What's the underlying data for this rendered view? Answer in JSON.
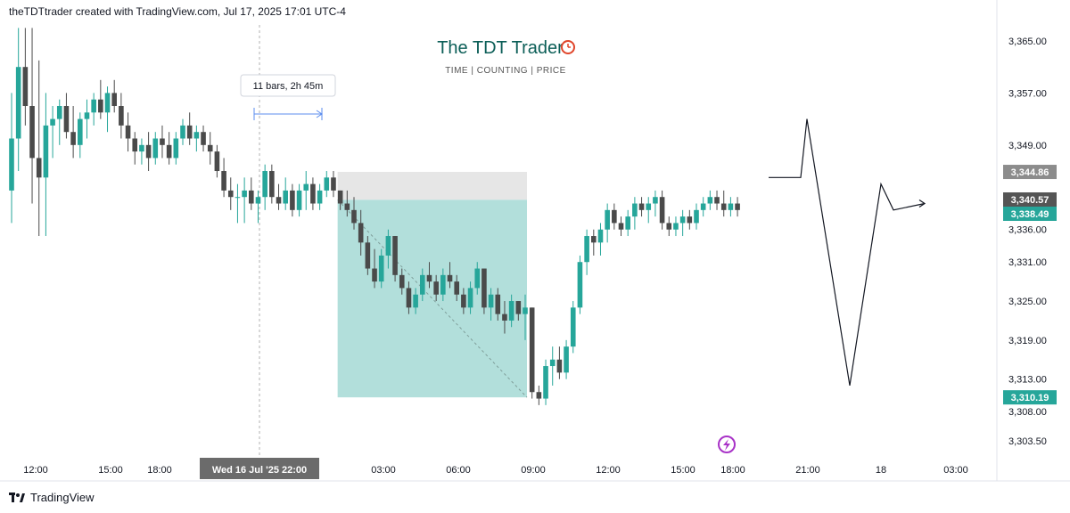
{
  "header": {
    "text": "theTDTtrader created with TradingView.com, Jul 17, 2025 17:01 UTC-4"
  },
  "watermark": {
    "title": "The TDT Trader",
    "subtitle": "TIME  |  COUNTING  |  PRICE",
    "icon": "alarm-clock-icon"
  },
  "footer": {
    "brand": "TradingView",
    "icon": "tradingview-logo-icon"
  },
  "measure_tooltip": {
    "text": "11 bars, 2h 45m"
  },
  "colors": {
    "up": "#26a69a",
    "down": "#4a4a4a",
    "box_fill": "#b2dfdb",
    "box_top": "#e6e6e6",
    "price_gray": "#8c8c8c",
    "price_dark": "#555555",
    "price_green": "#26a69a",
    "arrow_blue": "#5b8def"
  },
  "chart_data": {
    "type": "candlestick",
    "price_axis": {
      "ticks": [
        "3,365.00",
        "3,357.00",
        "3,349.00",
        "3,336.00",
        "3,331.00",
        "3,325.00",
        "3,319.00",
        "3,313.00",
        "3,308.00",
        "3,303.50"
      ],
      "ylim": [
        3301,
        3368
      ]
    },
    "time_axis": {
      "labels": [
        "12:00",
        "15:00",
        "18:00",
        "Wed 16 Jul '25",
        "22:00",
        "03:00",
        "06:00",
        "09:00",
        "12:00",
        "15:00",
        "18:00",
        "21:00",
        "18",
        "03:00"
      ],
      "highlighted": "Wed 16 Jul '25   22:00"
    },
    "price_labels": [
      {
        "text": "3,344.86",
        "value": 3344.86,
        "style": "gray"
      },
      {
        "text": "3,340.57",
        "value": 3340.57,
        "style": "dark"
      },
      {
        "text": "3,338.49",
        "value": 3338.49,
        "style": "green"
      },
      {
        "text": "3,310.19",
        "value": 3310.19,
        "style": "green"
      }
    ],
    "candles": [
      [
        3342,
        3357,
        3337,
        3350
      ],
      [
        3350,
        3367,
        3345,
        3361
      ],
      [
        3361,
        3367,
        3352,
        3355
      ],
      [
        3355,
        3367,
        3340,
        3347
      ],
      [
        3347,
        3362,
        3335,
        3344
      ],
      [
        3344,
        3357,
        3335,
        3352
      ],
      [
        3352,
        3355,
        3347,
        3353
      ],
      [
        3353,
        3356,
        3349,
        3355
      ],
      [
        3355,
        3357,
        3350,
        3351
      ],
      [
        3351,
        3355,
        3347,
        3349
      ],
      [
        3349,
        3354,
        3347,
        3353
      ],
      [
        3353,
        3356,
        3350,
        3354
      ],
      [
        3354,
        3357,
        3352,
        3356
      ],
      [
        3356,
        3359,
        3353,
        3354
      ],
      [
        3354,
        3358,
        3351,
        3357
      ],
      [
        3357,
        3359,
        3354,
        3355
      ],
      [
        3355,
        3357,
        3350,
        3352
      ],
      [
        3352,
        3354,
        3348,
        3350
      ],
      [
        3350,
        3351,
        3346,
        3348
      ],
      [
        3348,
        3350,
        3346,
        3349
      ],
      [
        3349,
        3351,
        3345,
        3347
      ],
      [
        3347,
        3351,
        3346,
        3350
      ],
      [
        3350,
        3352,
        3347,
        3349
      ],
      [
        3349,
        3351,
        3346,
        3347
      ],
      [
        3347,
        3351,
        3346,
        3350
      ],
      [
        3350,
        3353,
        3349,
        3352
      ],
      [
        3352,
        3354,
        3349,
        3350
      ],
      [
        3350,
        3352,
        3348,
        3351
      ],
      [
        3351,
        3352,
        3348,
        3349
      ],
      [
        3349,
        3351,
        3346,
        3348
      ],
      [
        3348,
        3349,
        3344,
        3345
      ],
      [
        3345,
        3347,
        3341,
        3342
      ],
      [
        3342,
        3344,
        3339,
        3341
      ],
      [
        3341,
        3343,
        3337,
        3341
      ],
      [
        3341,
        3344,
        3337,
        3342
      ],
      [
        3342,
        3344,
        3339,
        3340
      ],
      [
        3340,
        3342,
        3337,
        3341
      ],
      [
        3341,
        3346,
        3339,
        3345
      ],
      [
        3345,
        3346,
        3340,
        3341
      ],
      [
        3341,
        3343,
        3339,
        3340
      ],
      [
        3340,
        3344,
        3339,
        3342
      ],
      [
        3342,
        3343,
        3338,
        3339
      ],
      [
        3339,
        3343,
        3338,
        3342
      ],
      [
        3342,
        3345,
        3339,
        3343
      ],
      [
        3343,
        3344,
        3339,
        3340
      ],
      [
        3340,
        3343,
        3339,
        3342
      ],
      [
        3342,
        3345,
        3341,
        3344
      ],
      [
        3344,
        3345,
        3341,
        3342
      ],
      [
        3342,
        3342,
        3339,
        3340
      ],
      [
        3340,
        3342,
        3338,
        3339
      ],
      [
        3339,
        3341,
        3336,
        3337
      ],
      [
        3337,
        3339,
        3332,
        3334
      ],
      [
        3334,
        3335,
        3329,
        3330
      ],
      [
        3330,
        3333,
        3327,
        3328
      ],
      [
        3328,
        3333,
        3327,
        3332
      ],
      [
        3332,
        3336,
        3330,
        3335
      ],
      [
        3335,
        3335,
        3328,
        3329
      ],
      [
        3329,
        3330,
        3326,
        3327
      ],
      [
        3327,
        3328,
        3323,
        3324
      ],
      [
        3324,
        3327,
        3323,
        3326
      ],
      [
        3326,
        3330,
        3325,
        3329
      ],
      [
        3329,
        3331,
        3327,
        3328
      ],
      [
        3328,
        3329,
        3325,
        3326
      ],
      [
        3326,
        3330,
        3325,
        3329
      ],
      [
        3329,
        3331,
        3327,
        3328
      ],
      [
        3328,
        3329,
        3325,
        3326
      ],
      [
        3326,
        3327,
        3323,
        3324
      ],
      [
        3324,
        3328,
        3323,
        3327
      ],
      [
        3327,
        3331,
        3326,
        3330
      ],
      [
        3330,
        3330,
        3323,
        3324
      ],
      [
        3324,
        3327,
        3322,
        3326
      ],
      [
        3326,
        3327,
        3322,
        3323
      ],
      [
        3323,
        3325,
        3320,
        3322
      ],
      [
        3322,
        3326,
        3321,
        3325
      ],
      [
        3325,
        3325,
        3322,
        3323
      ],
      [
        3323,
        3326,
        3319,
        3324
      ],
      [
        3324,
        3324,
        3310,
        3311
      ],
      [
        3311,
        3312,
        3309,
        3310
      ],
      [
        3310,
        3316,
        3309,
        3315
      ],
      [
        3315,
        3318,
        3312,
        3316
      ],
      [
        3316,
        3318,
        3313,
        3314
      ],
      [
        3314,
        3319,
        3313,
        3318
      ],
      [
        3318,
        3325,
        3317,
        3324
      ],
      [
        3324,
        3332,
        3323,
        3331
      ],
      [
        3331,
        3336,
        3329,
        3335
      ],
      [
        3335,
        3336,
        3332,
        3334
      ],
      [
        3334,
        3337,
        3332,
        3336
      ],
      [
        3336,
        3340,
        3334,
        3339
      ],
      [
        3339,
        3340,
        3336,
        3337
      ],
      [
        3337,
        3338,
        3335,
        3336
      ],
      [
        3336,
        3339,
        3335,
        3338
      ],
      [
        3338,
        3341,
        3336,
        3340
      ],
      [
        3340,
        3341,
        3338,
        3339
      ],
      [
        3339,
        3341,
        3337,
        3340
      ],
      [
        3340,
        3342,
        3338,
        3341
      ],
      [
        3341,
        3342,
        3336,
        3337
      ],
      [
        3337,
        3338,
        3335,
        3336
      ],
      [
        3336,
        3338,
        3335,
        3337
      ],
      [
        3337,
        3339,
        3335,
        3338
      ],
      [
        3338,
        3339,
        3336,
        3337
      ],
      [
        3337,
        3340,
        3336,
        3339
      ],
      [
        3339,
        3341,
        3338,
        3340
      ],
      [
        3340,
        3342,
        3339,
        3341
      ],
      [
        3341,
        3342,
        3339,
        3340
      ],
      [
        3340,
        3342,
        3338,
        3339
      ],
      [
        3339,
        3341,
        3338,
        3340
      ],
      [
        3340,
        3341,
        3338,
        3339
      ]
    ],
    "projection_path": [
      [
        0,
        3344
      ],
      [
        1,
        3344
      ],
      [
        2,
        3353
      ],
      [
        3,
        3312
      ],
      [
        4,
        3343
      ],
      [
        5,
        3339
      ],
      [
        6,
        3340
      ]
    ]
  }
}
